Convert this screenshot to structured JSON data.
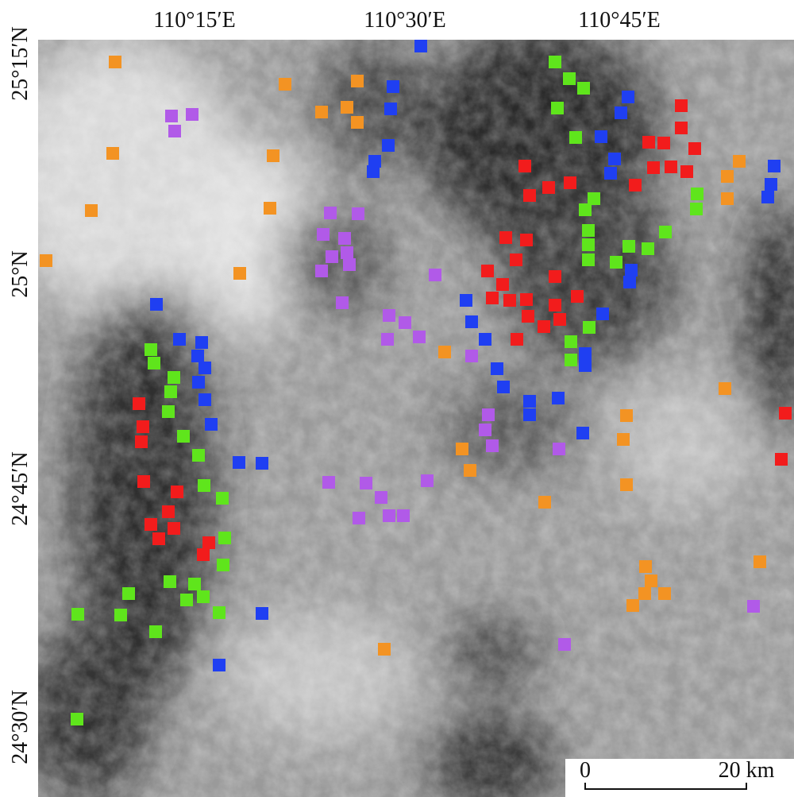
{
  "axes": {
    "x_labels": [
      "110°15′E",
      "110°30′E",
      "110°45′E"
    ],
    "y_labels": [
      "25°15′N",
      "25°N",
      "24°45′N",
      "24°30′N"
    ]
  },
  "scale_bar": {
    "start": "0",
    "end": "20 km"
  }
}
